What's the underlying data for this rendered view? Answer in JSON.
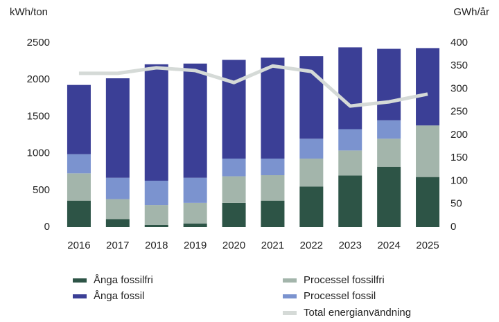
{
  "chart_data": {
    "type": "bar",
    "stacked": true,
    "ylabel": "kWh/ton",
    "y2label": "GWh/år",
    "categories": [
      "2016",
      "2017",
      "2018",
      "2019",
      "2020",
      "2021",
      "2022",
      "2023",
      "2024",
      "2025"
    ],
    "series": [
      {
        "name": "Ånga fossilfri",
        "color": "#2d5446",
        "values": [
          360,
          110,
          30,
          50,
          330,
          360,
          550,
          700,
          820,
          680
        ]
      },
      {
        "name": "Processel fossilfri",
        "color": "#a3b5ab",
        "values": [
          370,
          270,
          270,
          280,
          360,
          345,
          380,
          340,
          380,
          700
        ]
      },
      {
        "name": "Processel fossil",
        "color": "#7b93cf",
        "values": [
          260,
          290,
          330,
          340,
          240,
          225,
          270,
          290,
          250,
          0
        ]
      },
      {
        "name": "Ånga fossil",
        "color": "#3b3f96",
        "values": [
          940,
          1350,
          1580,
          1550,
          1340,
          1370,
          1120,
          1110,
          970,
          1050
        ]
      },
      {
        "name": "Total energianvändning",
        "color": "#d5dad7",
        "type": "line",
        "axis": "y2",
        "values": [
          334,
          334,
          346,
          340,
          314,
          350,
          338,
          263,
          272,
          289
        ]
      }
    ],
    "ylim": [
      0,
      2500
    ],
    "yticks": [
      0,
      500,
      1000,
      1500,
      2000,
      2500
    ],
    "y2lim": [
      0,
      400
    ],
    "y2ticks": [
      0,
      50,
      100,
      150,
      200,
      250,
      300,
      350,
      400
    ],
    "grid": false
  }
}
